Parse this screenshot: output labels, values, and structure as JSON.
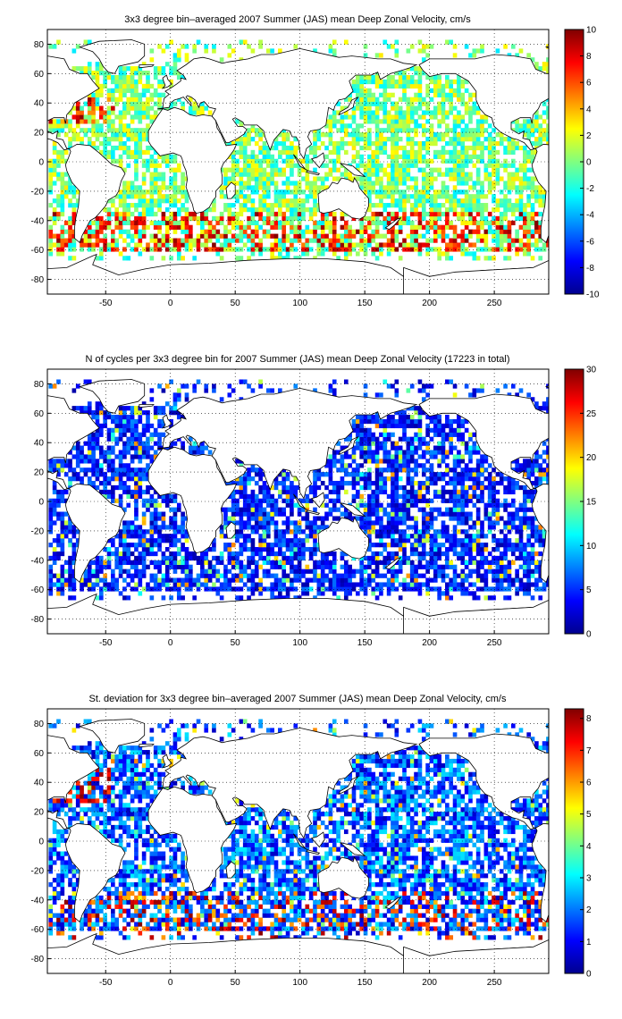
{
  "chart_data": [
    {
      "type": "heatmap",
      "title": "3x3 degree bin–averaged 2007 Summer (JAS) mean Deep Zonal Velocity, cm/s",
      "xlabel": "",
      "ylabel": "",
      "xlim": [
        -95,
        292
      ],
      "ylim": [
        -90,
        90
      ],
      "xticks": [
        "-50",
        "0",
        "50",
        "100",
        "150",
        "200",
        "250"
      ],
      "yticks": [
        "80",
        "60",
        "40",
        "20",
        "0",
        "-20",
        "-40",
        "-60",
        "-80"
      ],
      "grid": "dotted",
      "colorbar": {
        "min": -10,
        "max": 10,
        "ticks": [
          "10",
          "8",
          "6",
          "4",
          "2",
          "0",
          "-2",
          "-4",
          "-6",
          "-8",
          "-10"
        ]
      },
      "colormap": "jet",
      "bin_size_degrees": 3
    },
    {
      "type": "heatmap",
      "title": "N of cycles per 3x3 degree bin for 2007 Summer (JAS) mean Deep Zonal Velocity (17223 in total)",
      "xlabel": "",
      "ylabel": "",
      "xlim": [
        -95,
        292
      ],
      "ylim": [
        -90,
        90
      ],
      "xticks": [
        "-50",
        "0",
        "50",
        "100",
        "150",
        "200",
        "250"
      ],
      "yticks": [
        "80",
        "60",
        "40",
        "20",
        "0",
        "-20",
        "-40",
        "-60",
        "-80"
      ],
      "grid": "dotted",
      "colorbar": {
        "min": 0,
        "max": 30,
        "ticks": [
          "30",
          "25",
          "20",
          "15",
          "10",
          "5",
          "0"
        ]
      },
      "colormap": "jet",
      "bin_size_degrees": 3,
      "total_cycles": 17223
    },
    {
      "type": "heatmap",
      "title": "St. deviation for 3x3 degree bin–averaged 2007 Summer (JAS) mean Deep Zonal Velocity, cm/s",
      "xlabel": "",
      "ylabel": "",
      "xlim": [
        -95,
        292
      ],
      "ylim": [
        -90,
        90
      ],
      "xticks": [
        "-50",
        "0",
        "50",
        "100",
        "150",
        "200",
        "250"
      ],
      "yticks": [
        "80",
        "60",
        "40",
        "20",
        "0",
        "-20",
        "-40",
        "-60",
        "-80"
      ],
      "grid": "dotted",
      "colorbar": {
        "min": 0,
        "max": 8.3,
        "ticks": [
          "8",
          "7",
          "6",
          "5",
          "4",
          "3",
          "2",
          "1",
          "0"
        ]
      },
      "colormap": "jet",
      "bin_size_degrees": 3
    }
  ]
}
